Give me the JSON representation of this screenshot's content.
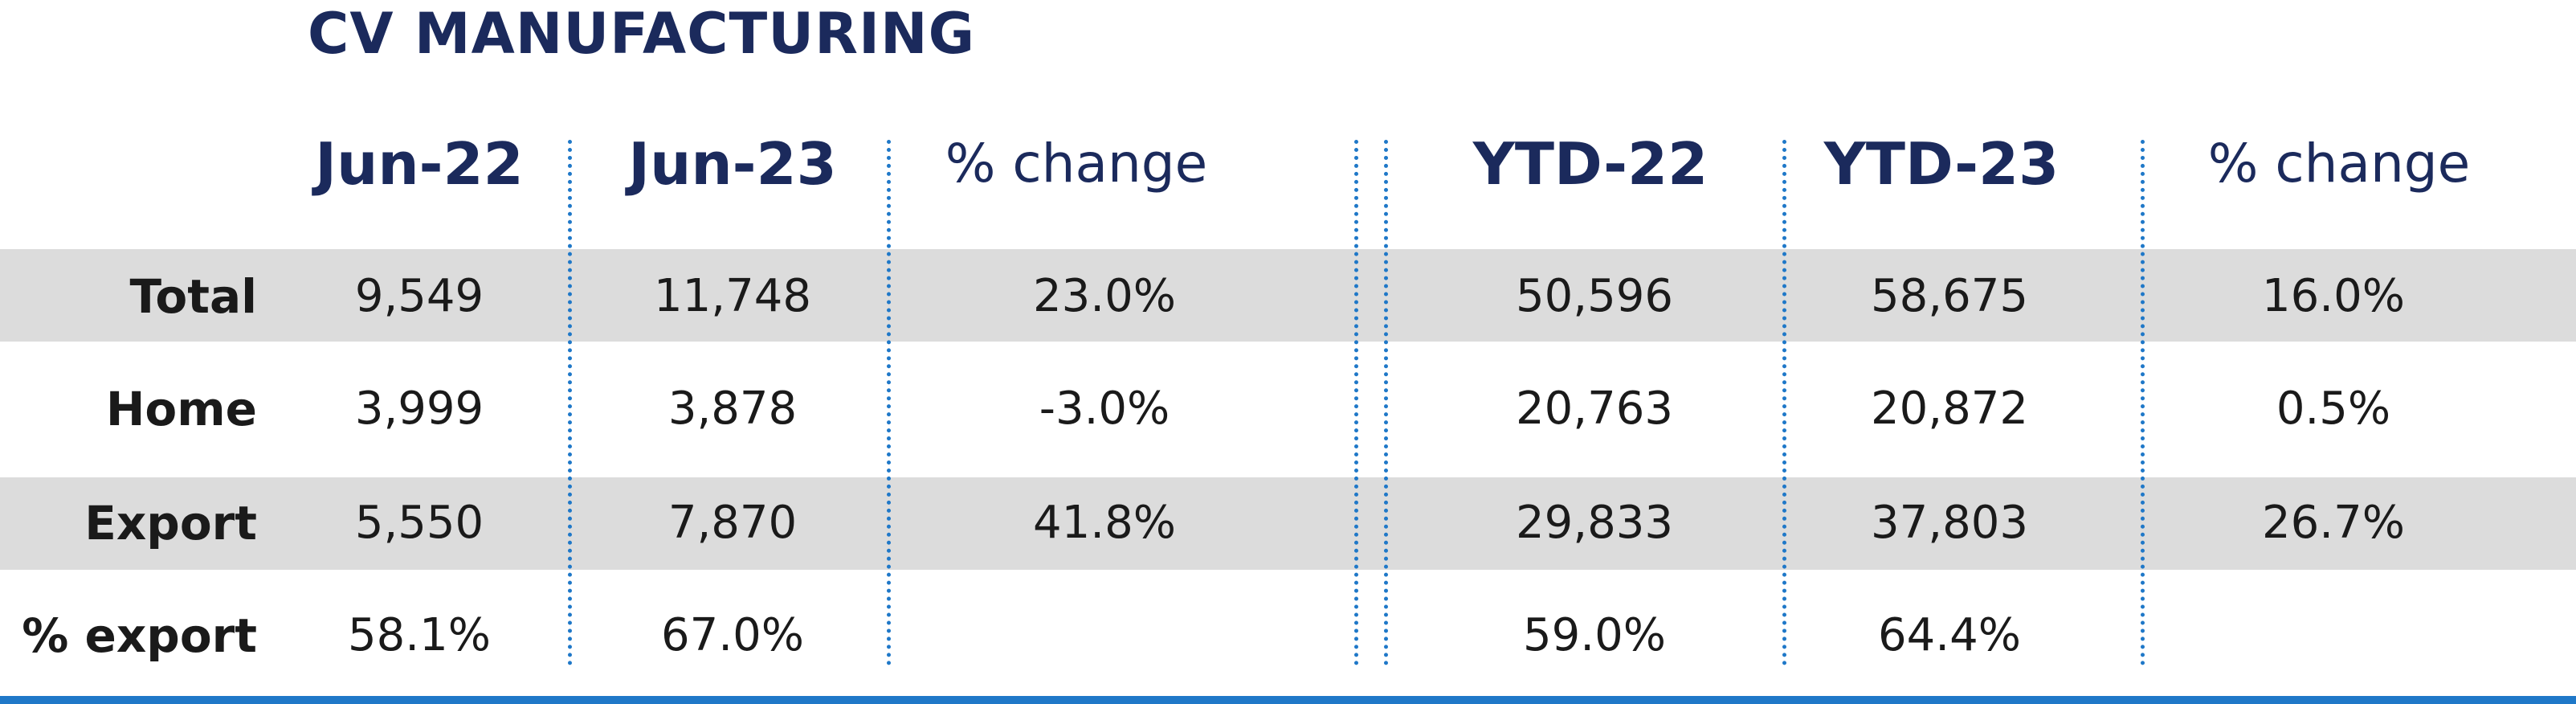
{
  "title": "CV MANUFACTURING",
  "headers": {
    "jun22": "Jun-22",
    "jun23": "Jun-23",
    "pct_change_month": "% change",
    "ytd22": "YTD-22",
    "ytd23": "YTD-23",
    "pct_change_ytd": "% change"
  },
  "rows": [
    {
      "label": "Total",
      "jun22": "9,549",
      "jun23": "11,748",
      "chg": "23.0%",
      "ytd22": "50,596",
      "ytd23": "58,675",
      "ytdchg": "16.0%"
    },
    {
      "label": "Home",
      "jun22": "3,999",
      "jun23": "3,878",
      "chg": "-3.0%",
      "ytd22": "20,763",
      "ytd23": "20,872",
      "ytdchg": "0.5%"
    },
    {
      "label": "Export",
      "jun22": "5,550",
      "jun23": "7,870",
      "chg": "41.8%",
      "ytd22": "29,833",
      "ytd23": "37,803",
      "ytdchg": "26.7%"
    },
    {
      "label": "% export",
      "jun22": "58.1%",
      "jun23": "67.0%",
      "chg": "",
      "ytd22": "59.0%",
      "ytd23": "64.4%",
      "ytdchg": ""
    }
  ],
  "colors": {
    "title": "#1b2a5c",
    "band": "#dcdcdc",
    "divider": "#1f78c8",
    "text": "#1a1a1a"
  }
}
